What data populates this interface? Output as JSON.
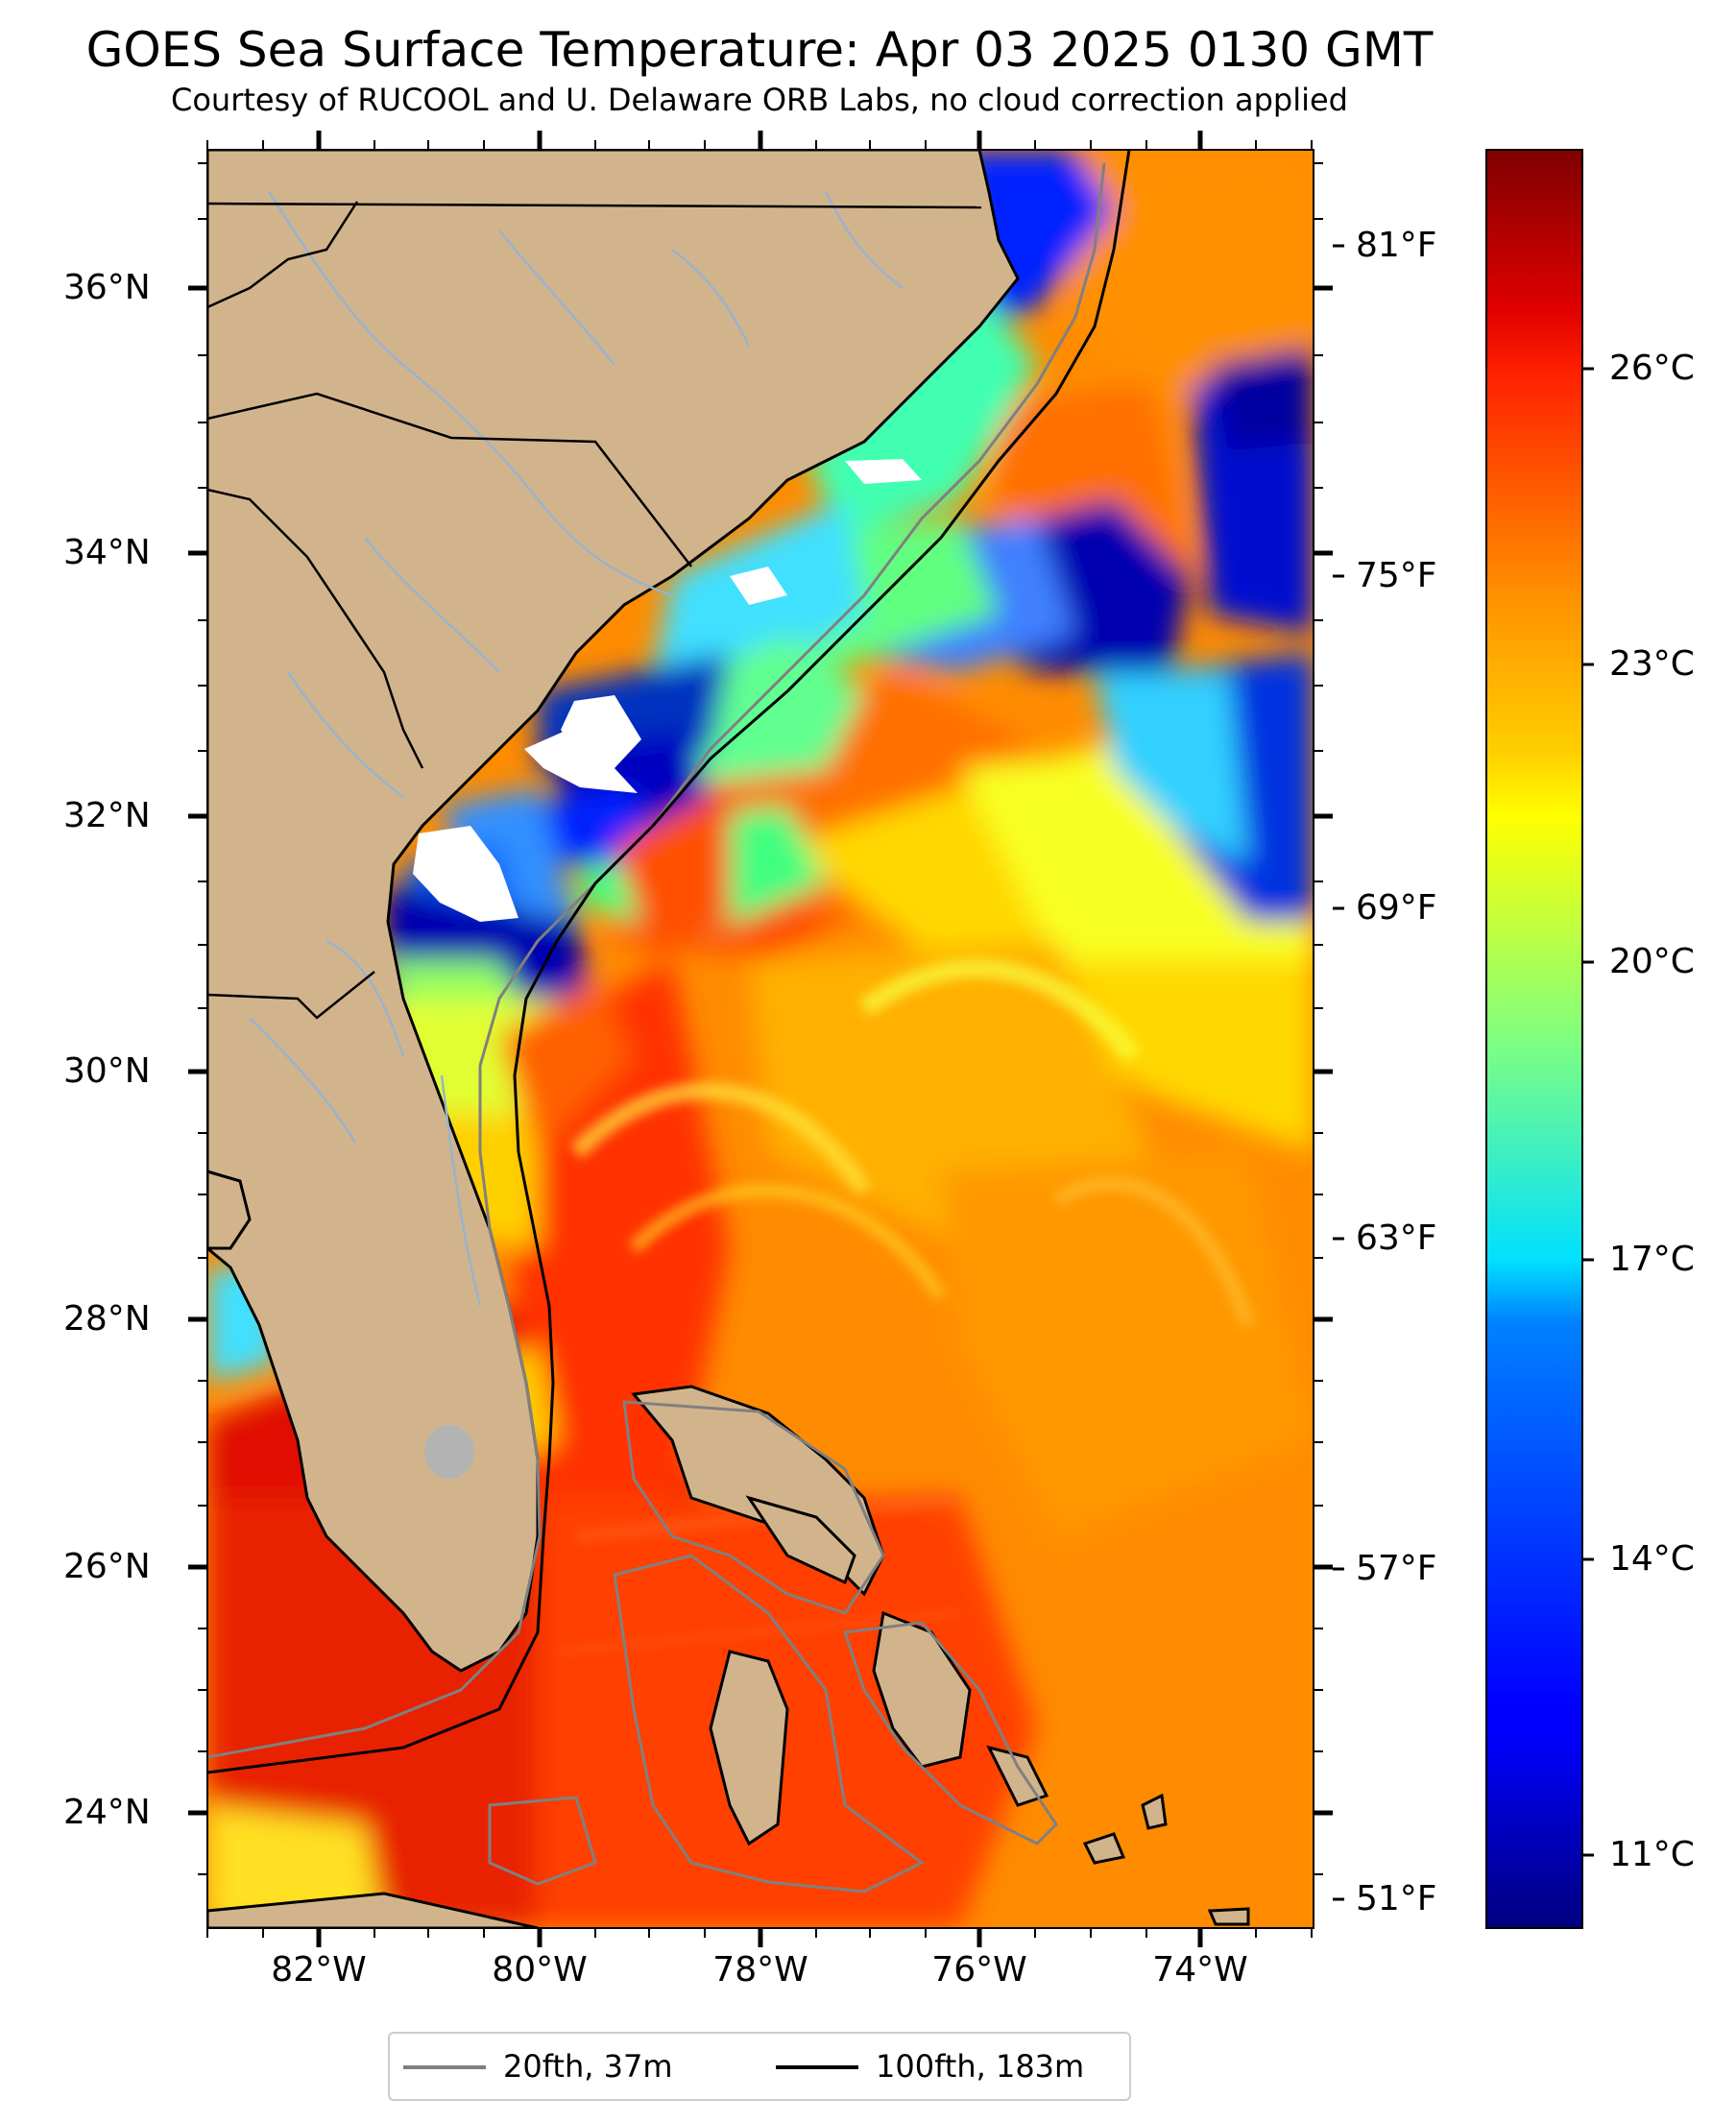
{
  "map": {
    "title": "GOES Sea Surface Temperature: Apr 03 2025 0130 GMT",
    "subtitle": "Courtesy of RUCOOL and U. Delaware ORB Labs, no cloud correction applied",
    "extent": {
      "lon_min": -83.0,
      "lon_max": -73.0,
      "lat_min": 23.1,
      "lat_max": 37.0
    },
    "lat_ticks": [
      {
        "value": 36,
        "label": "36°N"
      },
      {
        "value": 34,
        "label": "34°N"
      },
      {
        "value": 32,
        "label": "32°N"
      },
      {
        "value": 30,
        "label": "30°N"
      },
      {
        "value": 28,
        "label": "28°N"
      },
      {
        "value": 26,
        "label": "26°N"
      },
      {
        "value": 24,
        "label": "24°N"
      }
    ],
    "lon_ticks": [
      {
        "value": -82,
        "label": "82°W"
      },
      {
        "value": -80,
        "label": "80°W"
      },
      {
        "value": -78,
        "label": "78°W"
      },
      {
        "value": -76,
        "label": "76°W"
      },
      {
        "value": -74,
        "label": "74°W"
      }
    ],
    "colors": {
      "land": "#d2b48c",
      "cloud": "#ffffff",
      "lake": "#b3b3b3",
      "river": "#99b3cc",
      "border": "#000000",
      "isobath_20": "#808080",
      "isobath_100": "#000000"
    }
  },
  "colorbar": {
    "colormap": "jet",
    "celsius_range": [
      10.0,
      28.0
    ],
    "celsius_ticks": [
      {
        "value": 11,
        "label": "11°C"
      },
      {
        "value": 14,
        "label": "14°C"
      },
      {
        "value": 17,
        "label": "17°C"
      },
      {
        "value": 20,
        "label": "20°C"
      },
      {
        "value": 23,
        "label": "23°C"
      },
      {
        "value": 26,
        "label": "26°C"
      }
    ],
    "fahrenheit_ticks": [
      {
        "value": 51,
        "label": "51°F"
      },
      {
        "value": 57,
        "label": "57°F"
      },
      {
        "value": 63,
        "label": "63°F"
      },
      {
        "value": 69,
        "label": "69°F"
      },
      {
        "value": 75,
        "label": "75°F"
      },
      {
        "value": 81,
        "label": "81°F"
      }
    ]
  },
  "legend": {
    "items": [
      {
        "label": "20fth, 37m",
        "color": "#808080"
      },
      {
        "label": "100fth, 183m",
        "color": "#000000"
      }
    ]
  }
}
